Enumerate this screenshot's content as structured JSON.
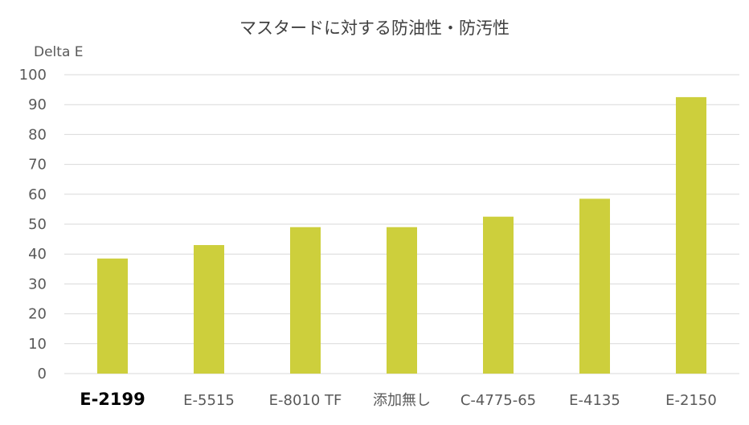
{
  "chart_data": {
    "type": "bar",
    "title": "マスタードに対する防油性・防汚性",
    "ylabel": "Delta E",
    "xlabel": "",
    "ylim": [
      0,
      100
    ],
    "yticks": [
      0,
      10,
      20,
      30,
      40,
      50,
      60,
      70,
      80,
      90,
      100
    ],
    "categories": [
      "E-2199",
      "E-5515",
      "E-8010 TF",
      "添加無し",
      "C-4775-65",
      "E-4135",
      "E-2150"
    ],
    "highlight_category": "E-2199",
    "values": [
      38.5,
      43,
      49,
      49,
      52.5,
      58.5,
      92.5
    ],
    "bar_color": "#cdcf3c",
    "grid": true,
    "legend": "none"
  }
}
